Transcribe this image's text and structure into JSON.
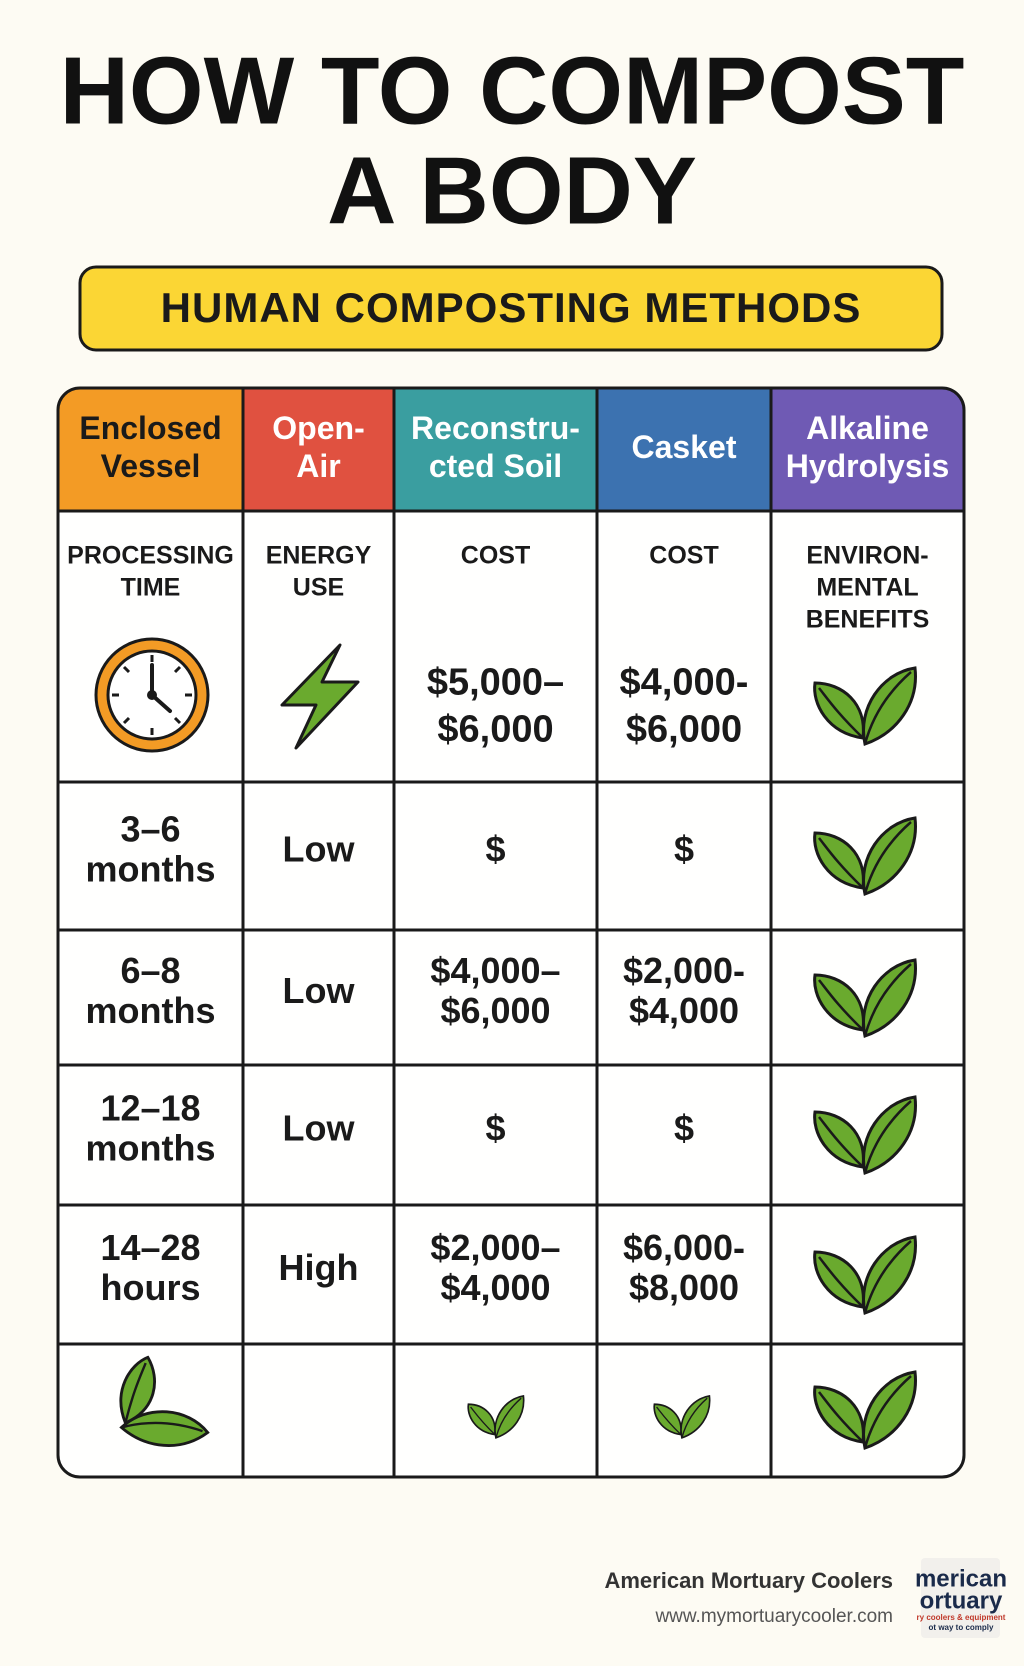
{
  "header": {
    "title_lines": [
      "HOW TO COMPOST",
      "A BODY"
    ],
    "subtitle": "HUMAN COMPOSTING METHODS"
  },
  "table": {
    "header_colors": [
      "#f39b25",
      "#e05140",
      "#3a9ea0",
      "#3c72b0",
      "#6f5ab4"
    ],
    "headers": [
      [
        "Enclosed",
        "Vessel"
      ],
      [
        "Open-",
        "Air"
      ],
      [
        "Reconstru-",
        "cted Soil"
      ],
      [
        "Casket"
      ],
      [
        "Alkaline",
        "Hydrolysis"
      ]
    ],
    "labels": [
      [
        "PROCESSING",
        "TIME"
      ],
      [
        "ENERGY",
        "USE"
      ],
      [
        "COST"
      ],
      [
        "COST"
      ],
      [
        "ENVIRON-",
        "MENTAL",
        "BENEFITS"
      ]
    ],
    "first_row_values": [
      null,
      null,
      [
        "$5,000–",
        "$6,000"
      ],
      [
        "$4,000-",
        "$6,000"
      ],
      null
    ],
    "rows": [
      [
        [
          "3–6",
          "months"
        ],
        [
          "Low"
        ],
        [
          "$"
        ],
        [
          "$"
        ],
        null
      ],
      [
        [
          "6–8",
          "months"
        ],
        [
          "Low"
        ],
        [
          "$4,000–",
          "$6,000"
        ],
        [
          "$2,000-",
          "$4,000"
        ],
        null
      ],
      [
        [
          "12–18",
          "months"
        ],
        [
          "Low"
        ],
        [
          "$"
        ],
        [
          "$"
        ],
        null
      ],
      [
        [
          "14–28",
          "hours"
        ],
        [
          "High"
        ],
        [
          "$2,000–",
          "$4,000"
        ],
        [
          "$6,000-",
          "$8,000"
        ],
        null
      ]
    ]
  },
  "footer": {
    "company": "American Mortuary Coolers",
    "url": "www.mymortuarycooler.com",
    "logo_lines": [
      "merican",
      "ortuary",
      "ry coolers & equipment",
      "ot way to comply"
    ]
  }
}
